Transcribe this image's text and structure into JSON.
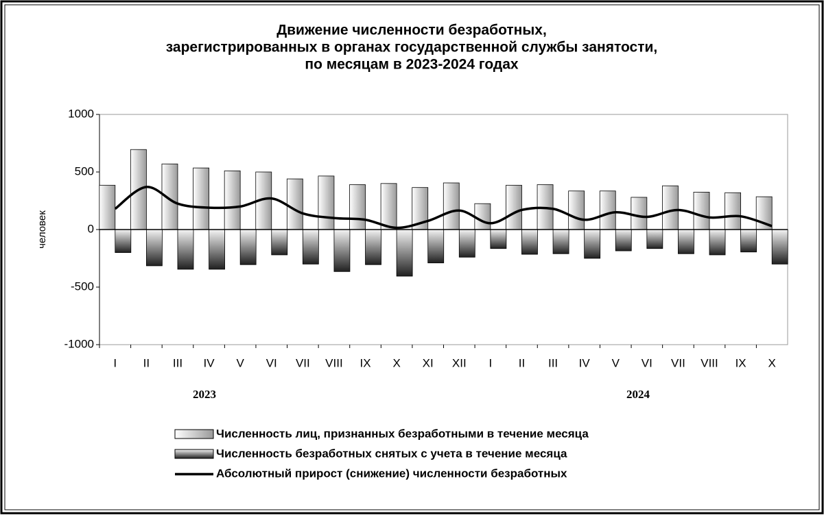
{
  "chart_data": {
    "type": "bar_line",
    "title": [
      "Движение численности безработных,",
      "зарегистрированных в органах государственной службы занятости,",
      "по месяцам в 2023-2024 годах"
    ],
    "ylabel": "человек",
    "categories": [
      "I",
      "II",
      "III",
      "IV",
      "V",
      "VI",
      "VII",
      "VIII",
      "IX",
      "X",
      "XI",
      "XII",
      "I",
      "II",
      "III",
      "IV",
      "V",
      "VI",
      "VII",
      "VIII",
      "IX",
      "X"
    ],
    "year_labels": [
      "2023",
      "2024"
    ],
    "series": [
      {
        "name": "Численность лиц, признанных безработными в течение месяца",
        "kind": "bar",
        "values": [
          385,
          695,
          570,
          535,
          510,
          500,
          440,
          465,
          390,
          400,
          365,
          405,
          225,
          385,
          390,
          335,
          335,
          280,
          380,
          325,
          320,
          285
        ]
      },
      {
        "name": "Численность безработных снятых с учета в течение месяца",
        "kind": "bar",
        "values": [
          -200,
          -315,
          -345,
          -345,
          -305,
          -220,
          -300,
          -365,
          -305,
          -405,
          -290,
          -240,
          -165,
          -215,
          -210,
          -250,
          -185,
          -165,
          -210,
          -220,
          -195,
          -300
        ]
      },
      {
        "name": "Абсолютный прирост (снижение) численности безработных",
        "kind": "line",
        "color": "#000000",
        "values": [
          180,
          370,
          225,
          190,
          200,
          270,
          140,
          100,
          85,
          15,
          75,
          165,
          55,
          170,
          180,
          85,
          150,
          110,
          170,
          105,
          115,
          30
        ]
      }
    ],
    "ylim": [
      -1000,
      1000
    ],
    "yticks": [
      -1000,
      -500,
      0,
      500,
      1000
    ],
    "grid": false
  }
}
